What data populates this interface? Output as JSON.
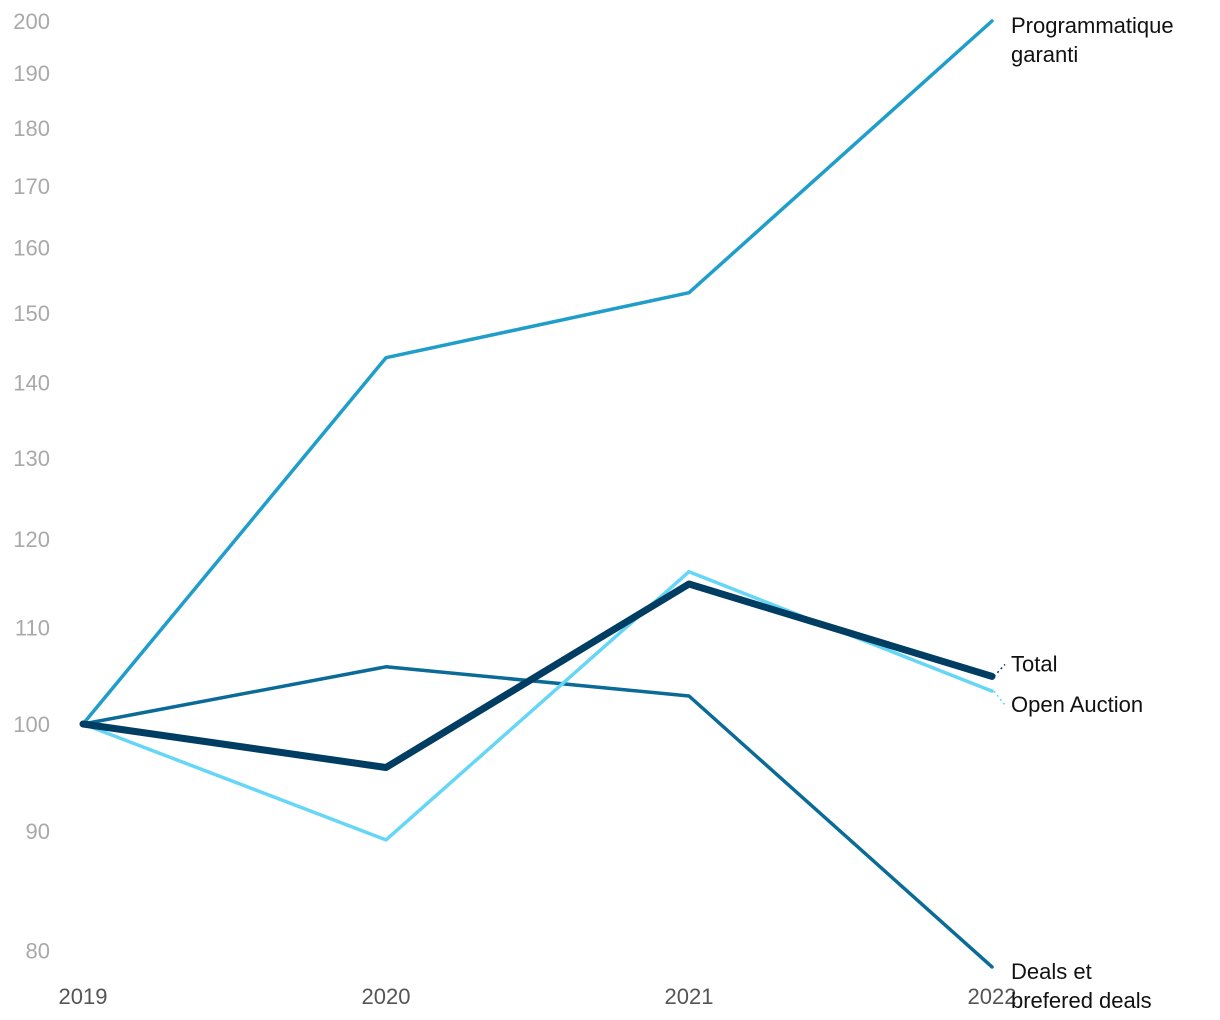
{
  "chart_data": {
    "type": "line",
    "title": "",
    "xlabel": "",
    "ylabel": "",
    "y_scale": "log",
    "ylim": [
      77,
      203
    ],
    "grid": false,
    "legend": "direct labels at line ends (right side)",
    "x": [
      "2019",
      "2020",
      "2021",
      "2022"
    ],
    "yticks": [
      "80",
      "90",
      "100",
      "110",
      "120",
      "130",
      "140",
      "150",
      "160",
      "170",
      "180",
      "190",
      "200"
    ],
    "series": [
      {
        "key": "programmatique",
        "name_lines": [
          "Programmatique",
          "garanti"
        ],
        "values": [
          100,
          143.5,
          153,
          200
        ],
        "color": "#1f9ec9",
        "width": 3.5,
        "label_offset_y": 0
      },
      {
        "key": "deals",
        "name_lines": [
          "Deals et",
          "brefered deals"
        ],
        "values": [
          100,
          105.8,
          102.8,
          78.7
        ],
        "color": "#0a6b97",
        "width": 3.5,
        "label_offset_y": 0
      },
      {
        "key": "open_auction",
        "name_lines": [
          "Open Auction"
        ],
        "values": [
          100,
          89.2,
          116.2,
          103.3
        ],
        "color": "#66d6f7",
        "width": 3.5,
        "label_offset_y": 14
      },
      {
        "key": "total",
        "name_lines": [
          "Total"
        ],
        "values": [
          100,
          95.8,
          114.8,
          104.8
        ],
        "color": "#003d62",
        "width": 7,
        "label_offset_y": -12
      }
    ]
  }
}
